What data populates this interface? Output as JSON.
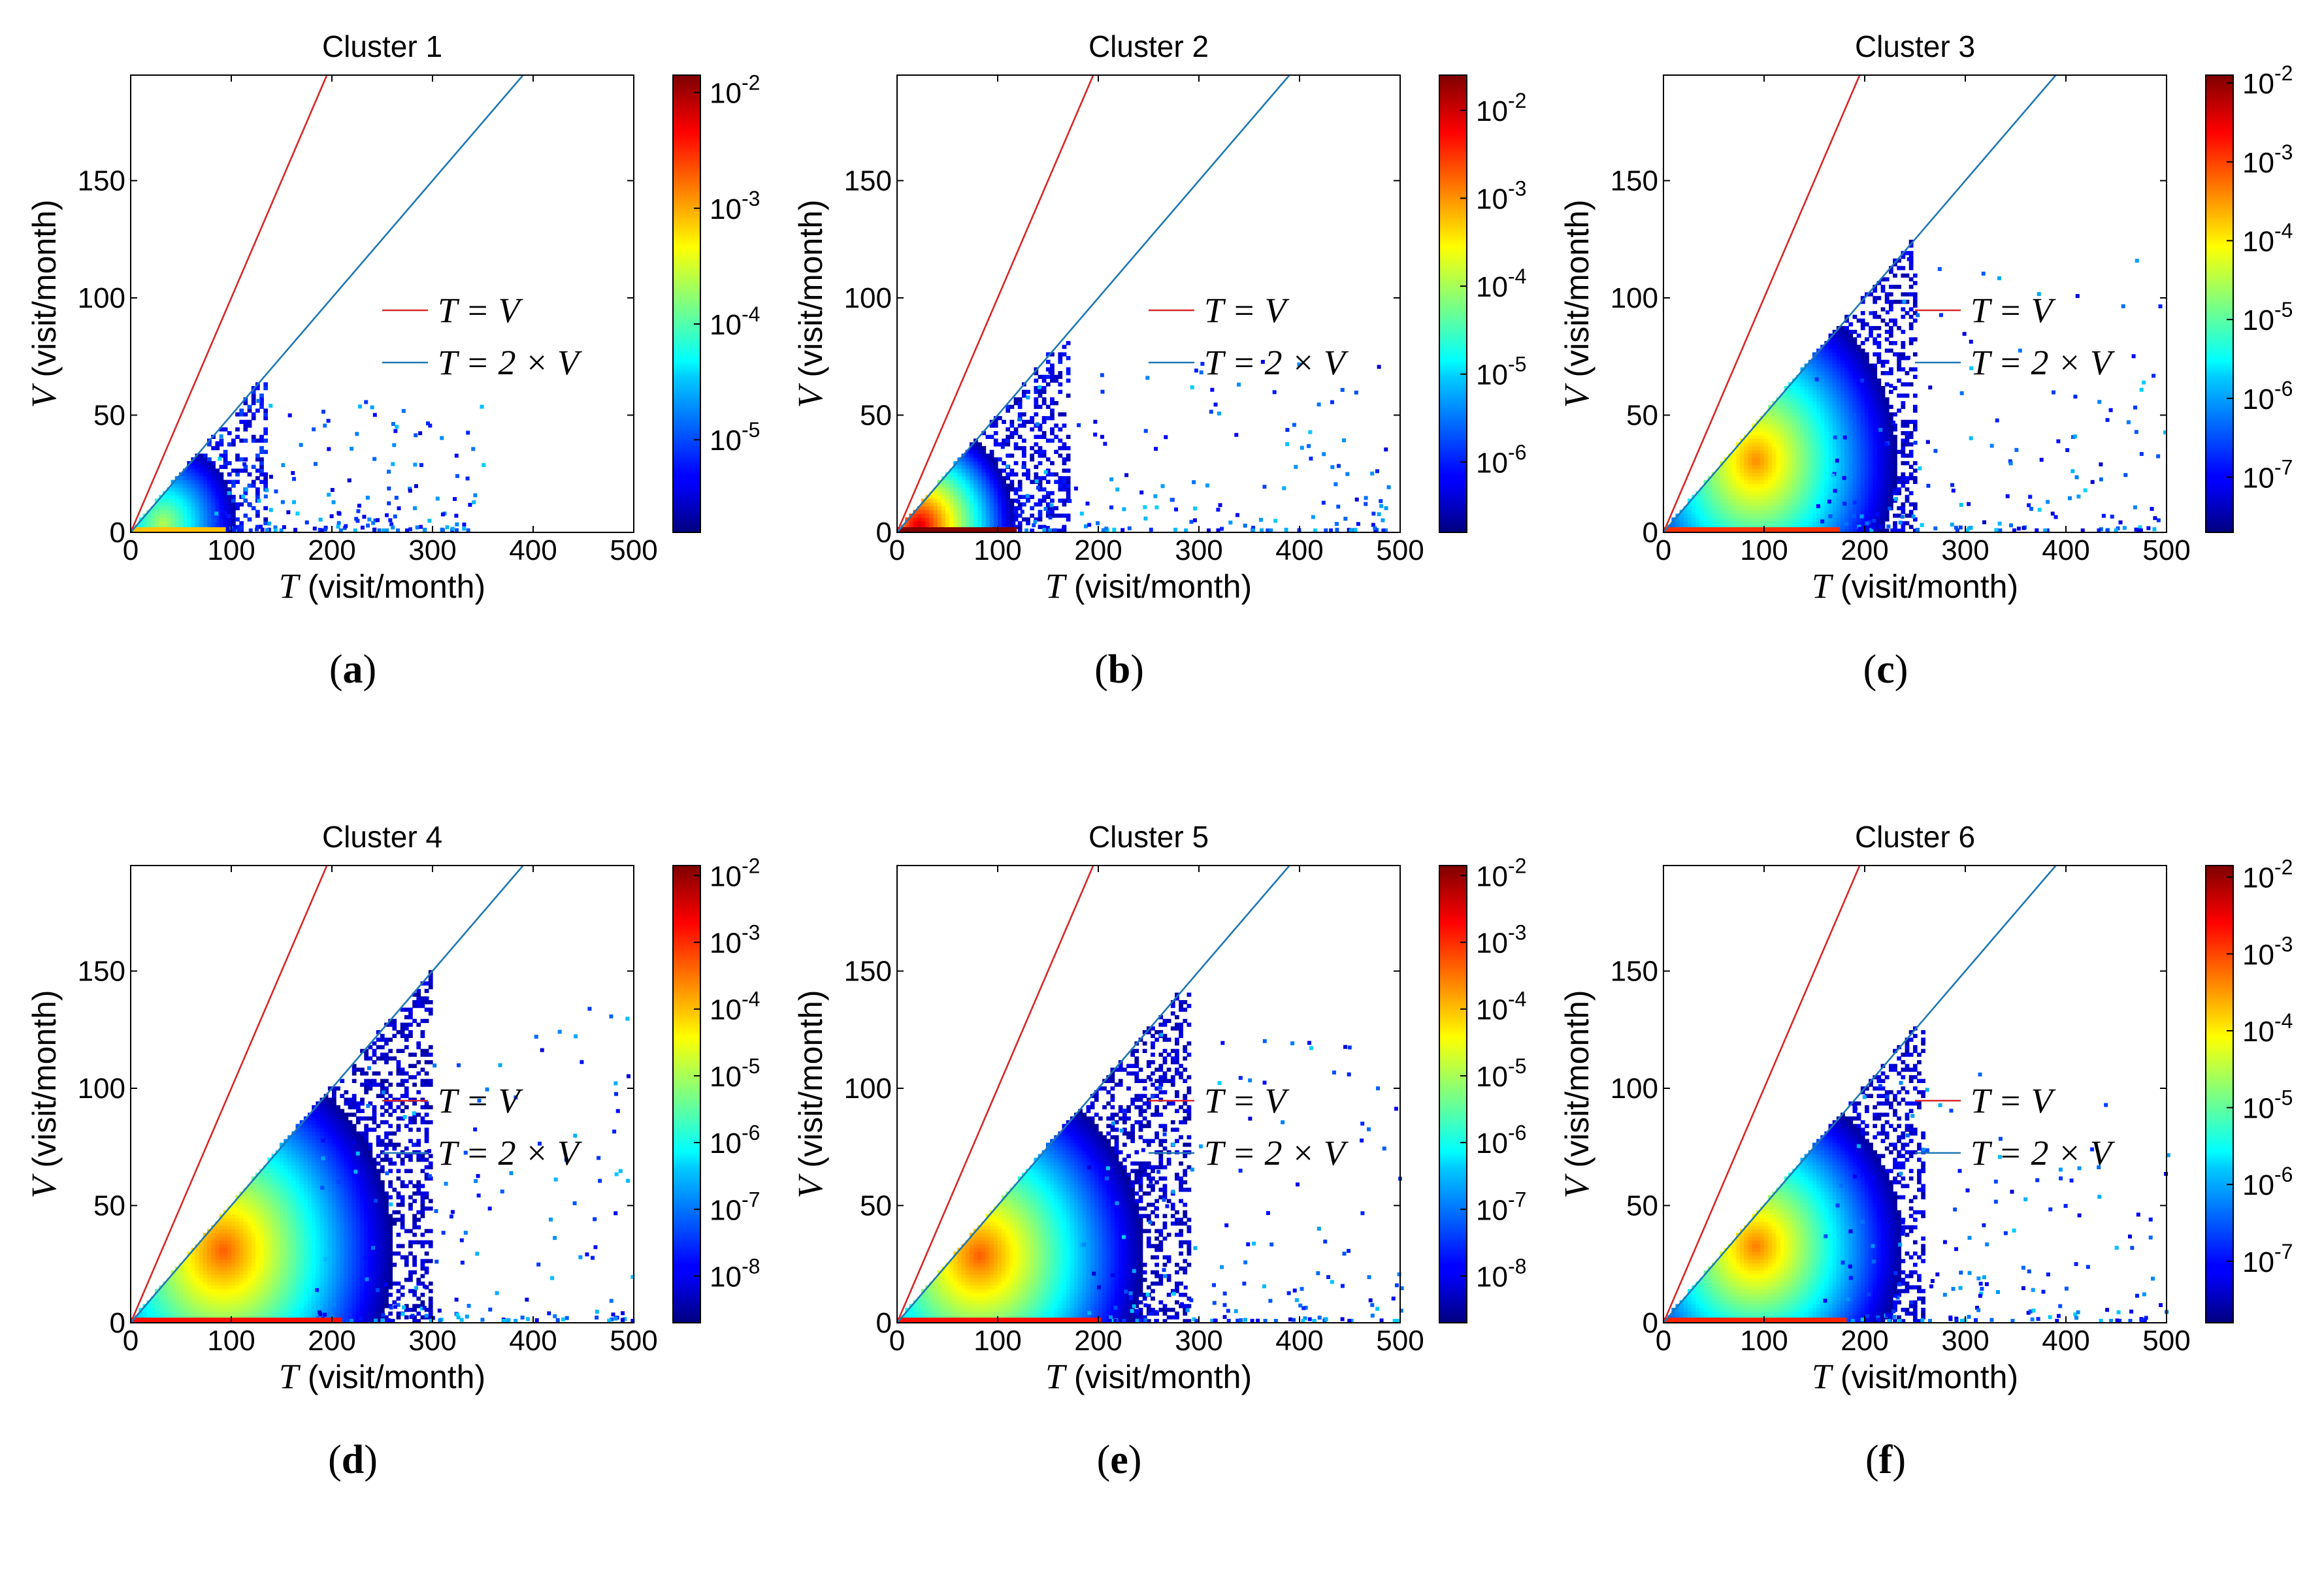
{
  "axis_labels": {
    "x_var": "T",
    "x_unit": " (visit/month)",
    "y_var": "V",
    "y_unit": " (visit/month)"
  },
  "legend": {
    "line1_text": "T = V",
    "line2_text": "T = 2 × V",
    "line1_color": "#d62728",
    "line2_color": "#1f77b4"
  },
  "chart_data": [
    {
      "type": "heatmap",
      "title": "Cluster 1",
      "panel_label": "(a)",
      "xlabel": "T (visit/month)",
      "ylabel": "V (visit/month)",
      "xlim": [
        0,
        500
      ],
      "ylim": [
        0,
        195
      ],
      "xticks": [
        0,
        100,
        200,
        300,
        400,
        500
      ],
      "yticks": [
        0,
        50,
        100,
        150
      ],
      "reference_lines": [
        {
          "label": "T = V",
          "slope": 1,
          "color": "#d62728"
        },
        {
          "label": "T = 2 × V",
          "slope": 0.5,
          "color": "#1f77b4"
        }
      ],
      "colorbar": {
        "scale": "log",
        "min_exp": -5.8,
        "max_exp": -1.85,
        "ticks": [
          "10^-2",
          "10^-3",
          "10^-4",
          "10^-5"
        ],
        "tick_exps": [
          -2,
          -3,
          -4,
          -5
        ]
      },
      "density": {
        "extent_T": 135,
        "extent_V": 65,
        "tail_T": 350,
        "peak_exp": -3.6,
        "peak_T": 30,
        "peak_V": 3
      }
    },
    {
      "type": "heatmap",
      "title": "Cluster 2",
      "panel_label": "(b)",
      "xlabel": "T (visit/month)",
      "ylabel": "V (visit/month)",
      "xlim": [
        0,
        500
      ],
      "ylim": [
        0,
        195
      ],
      "xticks": [
        0,
        100,
        200,
        300,
        400,
        500
      ],
      "yticks": [
        0,
        50,
        100,
        150
      ],
      "reference_lines": [
        {
          "label": "T = V",
          "slope": 1,
          "color": "#d62728"
        },
        {
          "label": "T = 2 × V",
          "slope": 0.5,
          "color": "#1f77b4"
        }
      ],
      "colorbar": {
        "scale": "log",
        "min_exp": -6.8,
        "max_exp": -1.6,
        "ticks": [
          "10^-2",
          "10^-3",
          "10^-4",
          "10^-5",
          "10^-6"
        ],
        "tick_exps": [
          -2,
          -3,
          -4,
          -5,
          -6
        ]
      },
      "density": {
        "extent_T": 170,
        "extent_V": 80,
        "tail_T": 490,
        "peak_exp": -2.0,
        "peak_T": 20,
        "peak_V": 2
      }
    },
    {
      "type": "heatmap",
      "title": "Cluster 3",
      "panel_label": "(c)",
      "xlabel": "T (visit/month)",
      "ylabel": "V (visit/month)",
      "xlim": [
        0,
        500
      ],
      "ylim": [
        0,
        195
      ],
      "xticks": [
        0,
        100,
        200,
        300,
        400,
        500
      ],
      "yticks": [
        0,
        50,
        100,
        150
      ],
      "reference_lines": [
        {
          "label": "T = V",
          "slope": 1,
          "color": "#d62728"
        },
        {
          "label": "T = 2 × V",
          "slope": 0.5,
          "color": "#1f77b4"
        }
      ],
      "colorbar": {
        "scale": "log",
        "min_exp": -7.7,
        "max_exp": -1.9,
        "ticks": [
          "10^-2",
          "10^-3",
          "10^-4",
          "10^-5",
          "10^-6",
          "10^-7"
        ],
        "tick_exps": [
          -2,
          -3,
          -4,
          -5,
          -6,
          -7
        ]
      },
      "density": {
        "extent_T": 250,
        "extent_V": 130,
        "tail_T": 500,
        "peak_exp": -3.4,
        "peak_T": 90,
        "peak_V": 30
      }
    },
    {
      "type": "heatmap",
      "title": "Cluster 4",
      "panel_label": "(d)",
      "xlabel": "T (visit/month)",
      "ylabel": "V (visit/month)",
      "xlim": [
        0,
        500
      ],
      "ylim": [
        0,
        195
      ],
      "xticks": [
        0,
        100,
        200,
        300,
        400,
        500
      ],
      "yticks": [
        0,
        50,
        100,
        150
      ],
      "reference_lines": [
        {
          "label": "T = V",
          "slope": 1,
          "color": "#d62728"
        },
        {
          "label": "T = 2 × V",
          "slope": 0.5,
          "color": "#1f77b4"
        }
      ],
      "colorbar": {
        "scale": "log",
        "min_exp": -8.7,
        "max_exp": -1.85,
        "ticks": [
          "10^-2",
          "10^-3",
          "10^-4",
          "10^-5",
          "10^-6",
          "10^-7",
          "10^-8"
        ],
        "tick_exps": [
          -2,
          -3,
          -4,
          -5,
          -6,
          -7,
          -8
        ]
      },
      "density": {
        "extent_T": 300,
        "extent_V": 150,
        "tail_T": 500,
        "peak_exp": -3.3,
        "peak_T": 90,
        "peak_V": 30
      }
    },
    {
      "type": "heatmap",
      "title": "Cluster 5",
      "panel_label": "(e)",
      "xlabel": "T (visit/month)",
      "ylabel": "V (visit/month)",
      "xlim": [
        0,
        500
      ],
      "ylim": [
        0,
        195
      ],
      "xticks": [
        0,
        100,
        200,
        300,
        400,
        500
      ],
      "yticks": [
        0,
        50,
        100,
        150
      ],
      "reference_lines": [
        {
          "label": "T = V",
          "slope": 1,
          "color": "#d62728"
        },
        {
          "label": "T = 2 × V",
          "slope": 0.5,
          "color": "#1f77b4"
        }
      ],
      "colorbar": {
        "scale": "log",
        "min_exp": -8.7,
        "max_exp": -1.85,
        "ticks": [
          "10^-2",
          "10^-3",
          "10^-4",
          "10^-5",
          "10^-6",
          "10^-7",
          "10^-8"
        ],
        "tick_exps": [
          -2,
          -3,
          -4,
          -5,
          -6,
          -7,
          -8
        ]
      },
      "density": {
        "extent_T": 290,
        "extent_V": 140,
        "tail_T": 500,
        "peak_exp": -3.3,
        "peak_T": 80,
        "peak_V": 28
      }
    },
    {
      "type": "heatmap",
      "title": "Cluster 6",
      "panel_label": "(f)",
      "xlabel": "T (visit/month)",
      "ylabel": "V (visit/month)",
      "xlim": [
        0,
        500
      ],
      "ylim": [
        0,
        195
      ],
      "xticks": [
        0,
        100,
        200,
        300,
        400,
        500
      ],
      "yticks": [
        0,
        50,
        100,
        150
      ],
      "reference_lines": [
        {
          "label": "T = V",
          "slope": 1,
          "color": "#d62728"
        },
        {
          "label": "T = 2 × V",
          "slope": 0.5,
          "color": "#1f77b4"
        }
      ],
      "colorbar": {
        "scale": "log",
        "min_exp": -7.8,
        "max_exp": -1.85,
        "ticks": [
          "10^-2",
          "10^-3",
          "10^-4",
          "10^-5",
          "10^-6",
          "10^-7"
        ],
        "tick_exps": [
          -2,
          -3,
          -4,
          -5,
          -6,
          -7
        ]
      },
      "density": {
        "extent_T": 260,
        "extent_V": 125,
        "tail_T": 500,
        "peak_exp": -3.3,
        "peak_T": 90,
        "peak_V": 32
      }
    }
  ]
}
